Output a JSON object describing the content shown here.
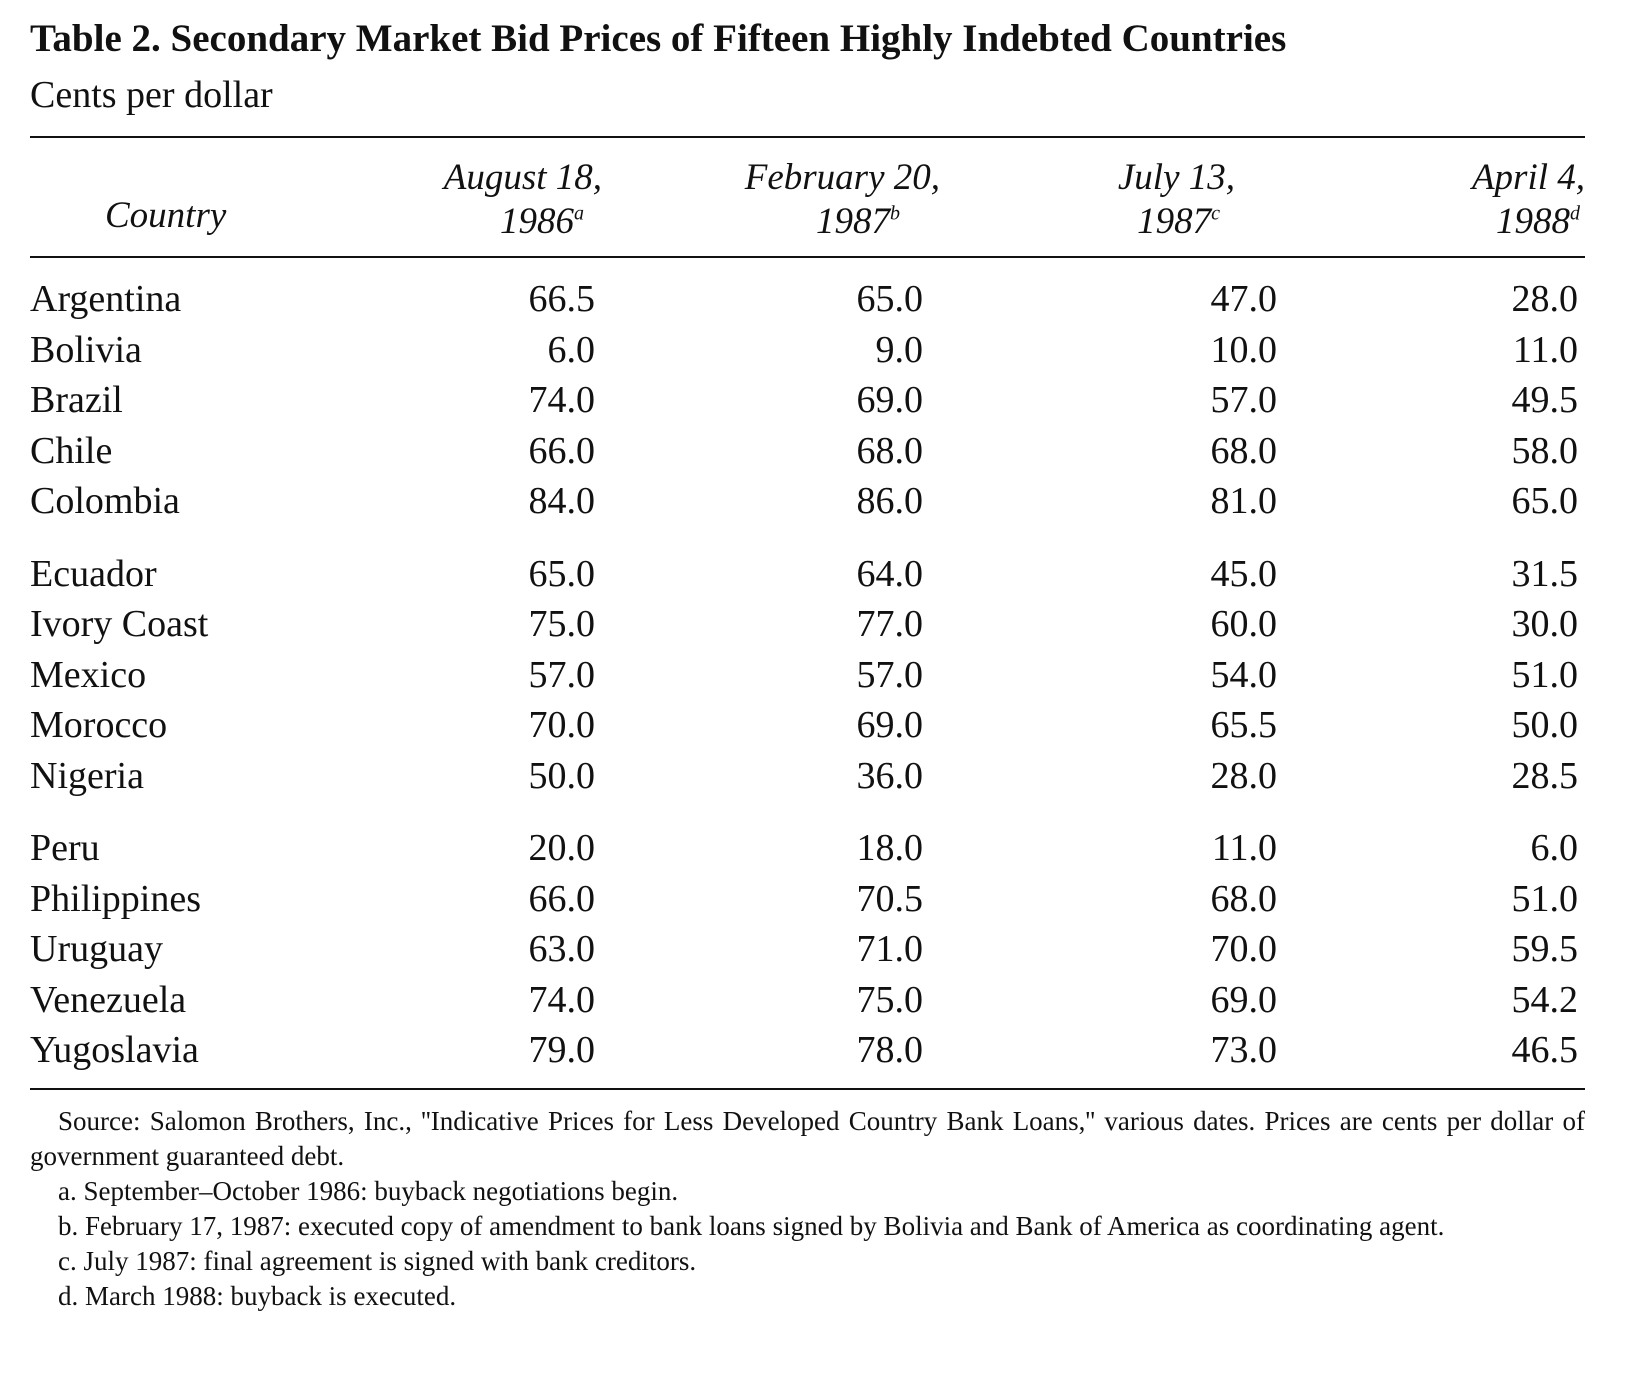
{
  "title": "Table 2. Secondary Market Bid Prices of Fifteen Highly Indebted Countries",
  "subtitle": "Cents per dollar",
  "columns": {
    "country": "Country",
    "c1": {
      "line1": "August 18,",
      "line2": "1986",
      "note": "a"
    },
    "c2": {
      "line1": "February 20,",
      "line2": "1987",
      "note": "b"
    },
    "c3": {
      "line1": "July 13,",
      "line2": "1987",
      "note": "c"
    },
    "c4": {
      "line1": "April 4,",
      "line2": "1988",
      "note": "d"
    }
  },
  "rows": [
    {
      "country": "Argentina",
      "v": [
        "66.5",
        "65.0",
        "47.0",
        "28.0"
      ]
    },
    {
      "country": "Bolivia",
      "v": [
        "6.0",
        "9.0",
        "10.0",
        "11.0"
      ]
    },
    {
      "country": "Brazil",
      "v": [
        "74.0",
        "69.0",
        "57.0",
        "49.5"
      ]
    },
    {
      "country": "Chile",
      "v": [
        "66.0",
        "68.0",
        "68.0",
        "58.0"
      ]
    },
    {
      "country": "Colombia",
      "v": [
        "84.0",
        "86.0",
        "81.0",
        "65.0"
      ]
    },
    {
      "country": "Ecuador",
      "v": [
        "65.0",
        "64.0",
        "45.0",
        "31.5"
      ]
    },
    {
      "country": "Ivory Coast",
      "v": [
        "75.0",
        "77.0",
        "60.0",
        "30.0"
      ]
    },
    {
      "country": "Mexico",
      "v": [
        "57.0",
        "57.0",
        "54.0",
        "51.0"
      ]
    },
    {
      "country": "Morocco",
      "v": [
        "70.0",
        "69.0",
        "65.5",
        "50.0"
      ]
    },
    {
      "country": "Nigeria",
      "v": [
        "50.0",
        "36.0",
        "28.0",
        "28.5"
      ]
    },
    {
      "country": "Peru",
      "v": [
        "20.0",
        "18.0",
        "11.0",
        "6.0"
      ]
    },
    {
      "country": "Philippines",
      "v": [
        "66.0",
        "70.5",
        "68.0",
        "51.0"
      ]
    },
    {
      "country": "Uruguay",
      "v": [
        "63.0",
        "71.0",
        "70.0",
        "59.5"
      ]
    },
    {
      "country": "Venezuela",
      "v": [
        "74.0",
        "75.0",
        "69.0",
        "54.2"
      ]
    },
    {
      "country": "Yugoslavia",
      "v": [
        "79.0",
        "78.0",
        "73.0",
        "46.5"
      ]
    }
  ],
  "notes": {
    "source": "Source: Salomon Brothers, Inc., ''Indicative Prices for Less Developed Country Bank Loans,'' various dates. Prices are cents per dollar of government guaranteed debt.",
    "a": "a. September–October 1986: buyback negotiations begin.",
    "b": "b. February 17, 1987: executed copy of amendment to bank loans signed by Bolivia and Bank of America as coordinating agent.",
    "c": "c. July 1987: final agreement is signed with bank creditors.",
    "d": "d. March 1988: buyback is executed."
  }
}
